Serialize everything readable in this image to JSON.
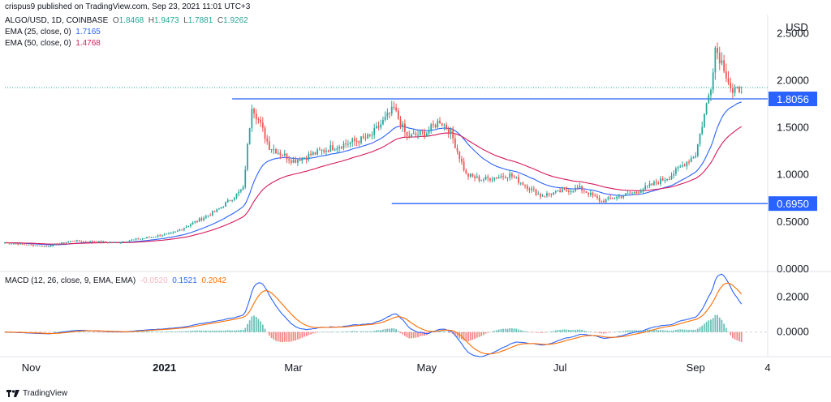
{
  "header": {
    "publisher": "crispus9 published on TradingView.com, Sep 23, 2021 11:01 UTC+3"
  },
  "legend": {
    "symbol": "ALGO/USD, 1D, COINBASE",
    "open_label": "O",
    "open": "1.8468",
    "high_label": "H",
    "high": "1.9473",
    "low_label": "L",
    "low": "1.7881",
    "close_label": "C",
    "close": "1.9262",
    "ema25_label": "EMA (25, close, 0)",
    "ema25_value": "1.7165",
    "ema50_label": "EMA (50, close, 0)",
    "ema50_value": "1.4768",
    "macd_label": "MACD (12, 26, close, 9, EMA, EMA)",
    "macd_hist": "-0.0520",
    "macd_line": "0.1521",
    "macd_signal": "0.2042"
  },
  "footer": {
    "brand": "TradingView"
  },
  "colors": {
    "up": "#26a69a",
    "down": "#ef5350",
    "ema25": "#2962ff",
    "ema50": "#d6195b",
    "hline": "#2962ff",
    "macd": "#2962ff",
    "signal": "#ff6d00",
    "hist_up": "#26a69a",
    "hist_down": "#ef5350"
  },
  "chart_data": {
    "type": "candlestick",
    "currency_label": "USD",
    "price_axis": {
      "min": 0,
      "max": 2.7,
      "ticks": [
        {
          "value": 0.0,
          "label": "0.0000"
        },
        {
          "value": 0.5,
          "label": "0.5000"
        },
        {
          "value": 1.0,
          "label": "1.0000"
        },
        {
          "value": 1.5,
          "label": "1.5000"
        },
        {
          "value": 2.0,
          "label": "2.0000"
        },
        {
          "value": 2.5,
          "label": "2.5000"
        }
      ]
    },
    "macd_axis": {
      "min": -0.13,
      "max": 0.33,
      "ticks": [
        {
          "value": 0.0,
          "label": "0.0000"
        },
        {
          "value": 0.2,
          "label": "0.2000"
        }
      ]
    },
    "time_axis": {
      "start": "2020-10-20",
      "end": "2021-10-04",
      "ticks": [
        {
          "date": "2020-11-01",
          "label": "Nov",
          "bold": false
        },
        {
          "date": "2021-01-01",
          "label": "2021",
          "bold": true
        },
        {
          "date": "2021-03-01",
          "label": "Mar",
          "bold": false
        },
        {
          "date": "2021-05-01",
          "label": "May",
          "bold": false
        },
        {
          "date": "2021-07-01",
          "label": "Jul",
          "bold": false
        },
        {
          "date": "2021-09-01",
          "label": "Sep",
          "bold": false
        },
        {
          "date": "2021-10-04",
          "label": "4",
          "bold": false
        }
      ]
    },
    "horizontal_lines": [
      {
        "value": 1.8056,
        "label": "1.8056",
        "from_date": "2021-02-01"
      },
      {
        "value": 0.695,
        "label": "0.6950",
        "from_date": "2021-04-15"
      }
    ],
    "last_price": 1.9262,
    "anchors": [
      [
        "2020-10-20",
        0.28
      ],
      [
        "2020-11-08",
        0.24
      ],
      [
        "2020-11-20",
        0.3
      ],
      [
        "2020-12-10",
        0.28
      ],
      [
        "2021-01-05",
        0.38
      ],
      [
        "2021-01-25",
        0.62
      ],
      [
        "2021-02-06",
        0.85
      ],
      [
        "2021-02-10",
        1.75
      ],
      [
        "2021-02-18",
        1.3
      ],
      [
        "2021-03-01",
        1.15
      ],
      [
        "2021-03-20",
        1.3
      ],
      [
        "2021-04-05",
        1.4
      ],
      [
        "2021-04-16",
        1.7
      ],
      [
        "2021-04-22",
        1.4
      ],
      [
        "2021-05-01",
        1.45
      ],
      [
        "2021-05-07",
        1.58
      ],
      [
        "2021-05-12",
        1.45
      ],
      [
        "2021-05-19",
        1.0
      ],
      [
        "2021-05-26",
        0.95
      ],
      [
        "2021-06-08",
        1.0
      ],
      [
        "2021-06-22",
        0.78
      ],
      [
        "2021-07-10",
        0.86
      ],
      [
        "2021-07-20",
        0.72
      ],
      [
        "2021-08-05",
        0.82
      ],
      [
        "2021-08-20",
        0.98
      ],
      [
        "2021-09-01",
        1.22
      ],
      [
        "2021-09-08",
        1.95
      ],
      [
        "2021-09-10",
        2.35
      ],
      [
        "2021-09-14",
        2.15
      ],
      [
        "2021-09-18",
        1.85
      ],
      [
        "2021-09-22",
        1.93
      ]
    ]
  }
}
